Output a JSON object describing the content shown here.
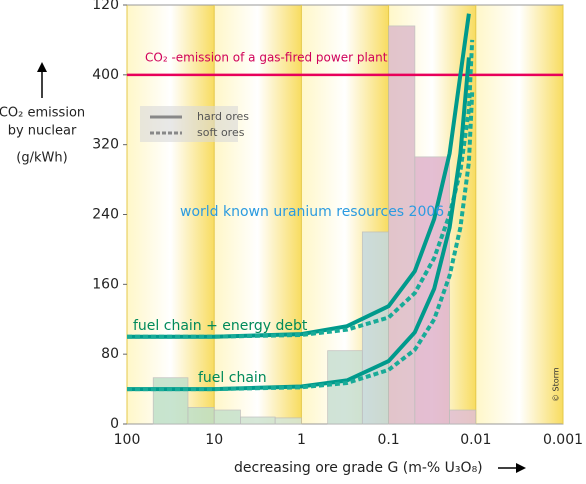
{
  "chart_data": {
    "type": "histogram",
    "ylabel": [
      "CO₂ emission",
      "by nuclear",
      "(g/kWh)"
    ],
    "xlabel": "decreasing ore grade G (m-% U₃O₈)",
    "xscale": "log",
    "xlim": [
      100,
      0.001
    ],
    "xticks": [
      100,
      10,
      1,
      0.1,
      0.01,
      0.001
    ],
    "ylim": [
      0,
      480
    ],
    "yticks": [
      0,
      80,
      160,
      240,
      320,
      400,
      {
        "value": 480,
        "label": "120"
      }
    ],
    "bins": [
      50,
      20,
      10,
      5,
      2,
      1,
      0.5,
      0.2,
      0.1,
      0.05,
      0.02,
      0.01
    ],
    "counts": [
      53,
      19,
      16,
      8,
      7,
      0,
      84,
      220,
      456,
      306,
      16
    ],
    "colors": [
      "#bfe0c8",
      "#bfe0c8",
      "#c6e2cc",
      "#cfe4d2",
      "#d4e6d8",
      "#d4e6d8",
      "#c8dfd2",
      "#c4d9e2",
      "#ddbccb",
      "#e0b4cc",
      "#e2c0d6"
    ],
    "x": [
      100,
      10,
      1,
      0.3,
      0.1,
      0.05,
      0.03,
      0.02,
      0.015,
      0.012,
      0.011
    ],
    "series": [
      {
        "color": "#009a8c",
        "dash": false,
        "values": [
          100,
          100,
          103,
          112,
          135,
          175,
          235,
          310,
          400,
          470,
          null
        ]
      },
      {
        "color": "#18ab98",
        "dash": true,
        "values": [
          100,
          100,
          102,
          108,
          122,
          150,
          190,
          240,
          290,
          360,
          440
        ]
      },
      {
        "color": "#009a8c",
        "dash": false,
        "values": [
          40,
          40,
          43,
          50,
          72,
          105,
          155,
          225,
          310,
          420,
          null
        ]
      },
      {
        "color": "#18ab98",
        "dash": true,
        "values": [
          40,
          40,
          42,
          47,
          62,
          85,
          120,
          170,
          225,
          300,
          380
        ]
      }
    ],
    "reference_line": {
      "value": 400,
      "color": "#e8005a",
      "label": "CO₂ -emission of a gas-fired power plant"
    },
    "legend": [
      "hard ores",
      "soft ores"
    ],
    "annotations": [
      "world known uranium resources 2006",
      "fuel chain + energy debt",
      "fuel chain",
      "© Storm"
    ]
  }
}
